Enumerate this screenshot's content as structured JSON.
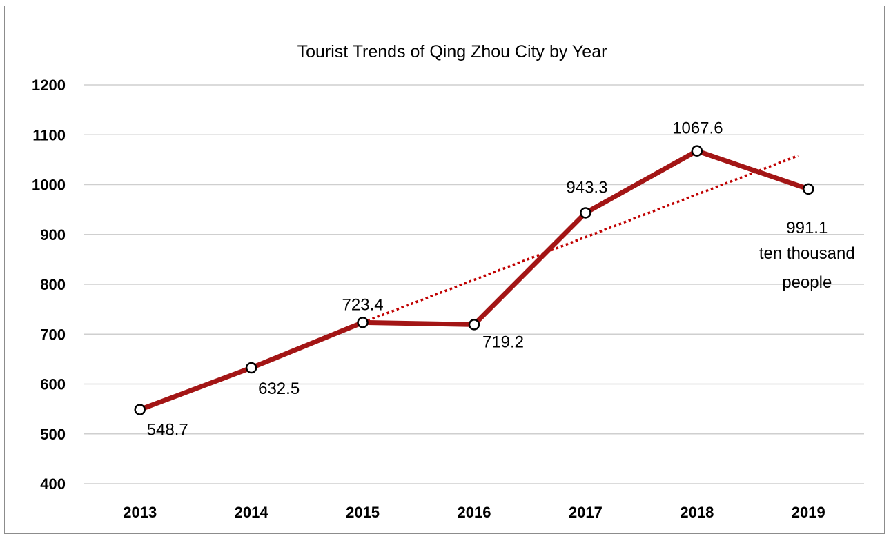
{
  "chart_data": {
    "type": "line",
    "title": "Tourist Trends of Qing Zhou  City by Year",
    "xlabel": "",
    "ylabel": "",
    "categories": [
      "2013",
      "2014",
      "2015",
      "2016",
      "2017",
      "2018",
      "2019"
    ],
    "series": [
      {
        "values": [
          548.7,
          632.5,
          723.4,
          719.2,
          943.3,
          1067.6,
          991.1
        ],
        "color": "#a31515",
        "marker": "circle"
      }
    ],
    "data_labels": [
      "548.7",
      "632.5",
      "723.4",
      "719.2",
      "943.3",
      "1067.6",
      "991.1"
    ],
    "unit_label": [
      "ten thousand",
      "people"
    ],
    "trendline": {
      "style": "dotted",
      "color": "#c00000",
      "from_category": "2015",
      "to_category": "2019",
      "start_value": 723.4,
      "end_value": 1058
    },
    "ylim": [
      400,
      1200
    ],
    "yticks": [
      "400",
      "500",
      "600",
      "700",
      "800",
      "900",
      "1000",
      "1100",
      "1200"
    ],
    "grid": true,
    "legend": "none"
  }
}
